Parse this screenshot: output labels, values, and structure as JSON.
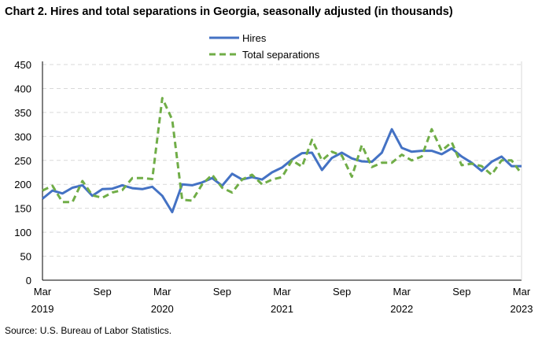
{
  "chart_data": {
    "type": "line",
    "title": "Chart 2. Hires and total separations in Georgia, seasonally adjusted (in thousands)",
    "source": "Source: U.S. Bureau of Labor Statistics.",
    "xlabel": "",
    "ylabel": "",
    "ylim": [
      0,
      450
    ],
    "yticks": [
      "0",
      "50",
      "100",
      "150",
      "200",
      "250",
      "300",
      "350",
      "400",
      "450"
    ],
    "xticks": [
      {
        "index": 0,
        "month": "Mar",
        "year": "2019"
      },
      {
        "index": 6,
        "month": "Sep",
        "year": ""
      },
      {
        "index": 12,
        "month": "Mar",
        "year": "2020"
      },
      {
        "index": 18,
        "month": "Sep",
        "year": ""
      },
      {
        "index": 24,
        "month": "Mar",
        "year": "2021"
      },
      {
        "index": 30,
        "month": "Sep",
        "year": ""
      },
      {
        "index": 36,
        "month": "Mar",
        "year": "2022"
      },
      {
        "index": 42,
        "month": "Sep",
        "year": ""
      },
      {
        "index": 48,
        "month": "Mar",
        "year": "2023"
      }
    ],
    "x_range": "Mar 2019 - Mar 2023 (monthly)",
    "grid": true,
    "legend": "top-center",
    "series": [
      {
        "name": "Hires",
        "color": "#4472c4",
        "dash": false,
        "values": [
          170,
          187,
          181,
          193,
          198,
          176,
          190,
          191,
          198,
          192,
          190,
          195,
          176,
          142,
          200,
          198,
          204,
          213,
          197,
          222,
          210,
          215,
          210,
          225,
          235,
          252,
          265,
          266,
          230,
          255,
          266,
          254,
          248,
          247,
          266,
          315,
          276,
          268,
          270,
          270,
          263,
          275,
          258,
          245,
          228,
          247,
          258,
          238,
          238
        ]
      },
      {
        "name": "Total separations",
        "color": "#70ad47",
        "dash": true,
        "values": [
          187,
          197,
          163,
          163,
          207,
          177,
          172,
          183,
          188,
          213,
          213,
          211,
          380,
          335,
          168,
          166,
          200,
          220,
          193,
          183,
          210,
          220,
          200,
          210,
          215,
          250,
          237,
          293,
          250,
          268,
          260,
          216,
          282,
          236,
          245,
          245,
          262,
          250,
          258,
          315,
          270,
          288,
          240,
          243,
          238,
          220,
          250,
          250,
          222
        ]
      }
    ]
  }
}
